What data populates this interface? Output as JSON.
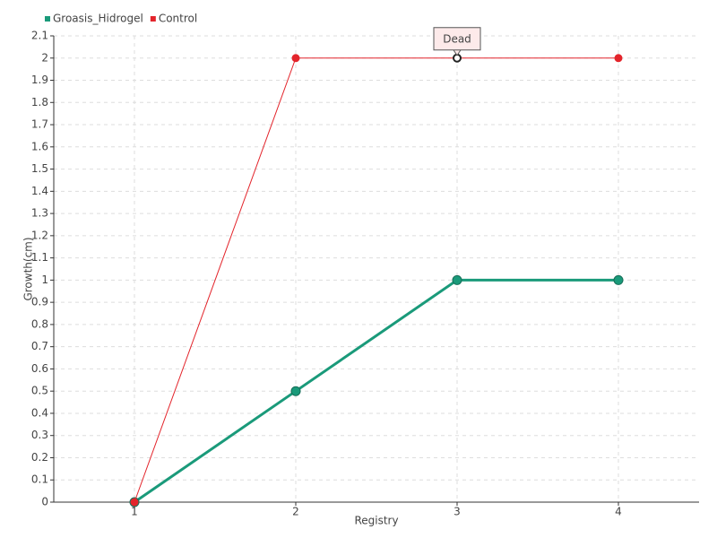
{
  "chart_data": {
    "type": "line",
    "categories": [
      "1",
      "2",
      "3",
      "4"
    ],
    "series": [
      {
        "name": "Groasis_Hidrogel",
        "color": "#1a9a7a",
        "values": [
          0,
          0.5,
          1,
          1
        ]
      },
      {
        "name": "Control",
        "color": "#e3242b",
        "values": [
          0,
          2,
          2,
          2
        ]
      }
    ],
    "x_label": "Registry",
    "y_label": "Growth(cm)",
    "ylim": [
      0,
      2.1
    ],
    "yticks": [
      0,
      0.1,
      0.2,
      0.3,
      0.4,
      0.5,
      0.6,
      0.7,
      0.8,
      0.9,
      1,
      1.1,
      1.2,
      1.3,
      1.4,
      1.5,
      1.6,
      1.7,
      1.8,
      1.9,
      2,
      2.1
    ],
    "grid": true,
    "legend": "top-left",
    "annotations": [
      {
        "text": "Dead",
        "x": "3",
        "y": 2
      }
    ]
  }
}
